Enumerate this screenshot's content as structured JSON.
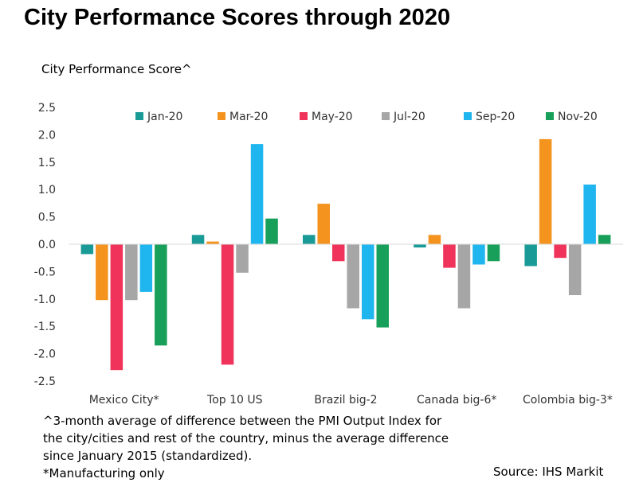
{
  "title": "City Performance Scores through 2020",
  "y_axis_title": "City Performance Score^",
  "notes": [
    "^3-month average of difference between the PMI Output Index for",
    "the city/cities and rest of the country, minus the average difference",
    "since January 2015 (standardized).",
    "*Manufacturing only"
  ],
  "source": "Source: IHS Markit",
  "chart_data": {
    "type": "bar",
    "title": "City Performance Scores through 2020",
    "ylabel": "City Performance Score^",
    "categories": [
      "Mexico City*",
      "Top 10 US",
      "Brazil big-2",
      "Canada big-6*",
      "Colombia big-3*"
    ],
    "ylim": [
      -2.5,
      2.5
    ],
    "yticks": [
      "2.5",
      "2.0",
      "1.5",
      "1.0",
      "0.5",
      "0.0",
      "-0.5",
      "-1.0",
      "-1.5",
      "-2.0",
      "-2.5"
    ],
    "ytick_values": [
      2.5,
      2.0,
      1.5,
      1.0,
      0.5,
      0.0,
      -0.5,
      -1.0,
      -1.5,
      -2.0,
      -2.5
    ],
    "legend_position": "top",
    "grid": false,
    "series": [
      {
        "name": "Jan-20",
        "color": "#1a9a96",
        "values": [
          -0.18,
          0.17,
          0.17,
          -0.06,
          -0.4
        ]
      },
      {
        "name": "Mar-20",
        "color": "#f5931f",
        "values": [
          -1.02,
          0.05,
          0.74,
          0.17,
          1.92
        ]
      },
      {
        "name": "May-20",
        "color": "#f0335a",
        "values": [
          -2.3,
          -2.2,
          -0.31,
          -0.43,
          -0.25
        ]
      },
      {
        "name": "Jul-20",
        "color": "#a6a6a6",
        "values": [
          -1.02,
          -0.52,
          -1.17,
          -1.17,
          -0.93
        ]
      },
      {
        "name": "Sep-20",
        "color": "#1fb6f0",
        "values": [
          -0.87,
          1.83,
          -1.37,
          -0.37,
          1.09
        ]
      },
      {
        "name": "Nov-20",
        "color": "#18a05a",
        "values": [
          -1.85,
          0.47,
          -1.52,
          -0.31,
          0.17
        ]
      }
    ]
  }
}
